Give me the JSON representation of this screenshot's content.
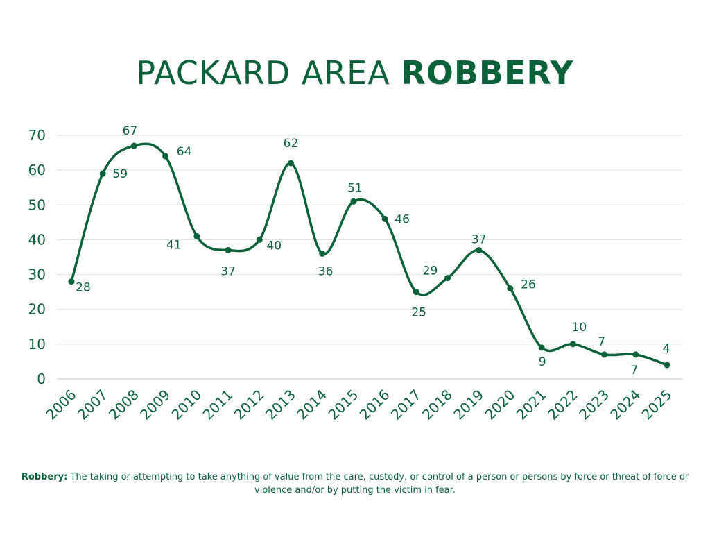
{
  "title": {
    "regular": "PACKARD AREA",
    "bold": "ROBBERY"
  },
  "colors": {
    "primary": "#0b6138",
    "grid": "#d6e0dc"
  },
  "chart_data": {
    "type": "line",
    "smooth": true,
    "markers": true,
    "grid": "horizontal",
    "categories": [
      "2006",
      "2007",
      "2008",
      "2009",
      "2010",
      "2011",
      "2012",
      "2013",
      "2014",
      "2015",
      "2016",
      "2017",
      "2018",
      "2019",
      "2020",
      "2021",
      "2022",
      "2023",
      "2024",
      "2025"
    ],
    "values": [
      28,
      59,
      67,
      64,
      41,
      37,
      40,
      62,
      36,
      51,
      46,
      25,
      29,
      37,
      26,
      9,
      10,
      7,
      7,
      4
    ],
    "ylim": [
      0,
      70
    ],
    "yticks": [
      0,
      10,
      20,
      30,
      40,
      50,
      60,
      70
    ],
    "data_labels": true
  },
  "footnote": {
    "term": "Robbery:",
    "text": " The taking or attempting to take anything of value from the care, custody, or control of a person or persons by force or threat of force or violence and/or by putting the victim in fear."
  }
}
